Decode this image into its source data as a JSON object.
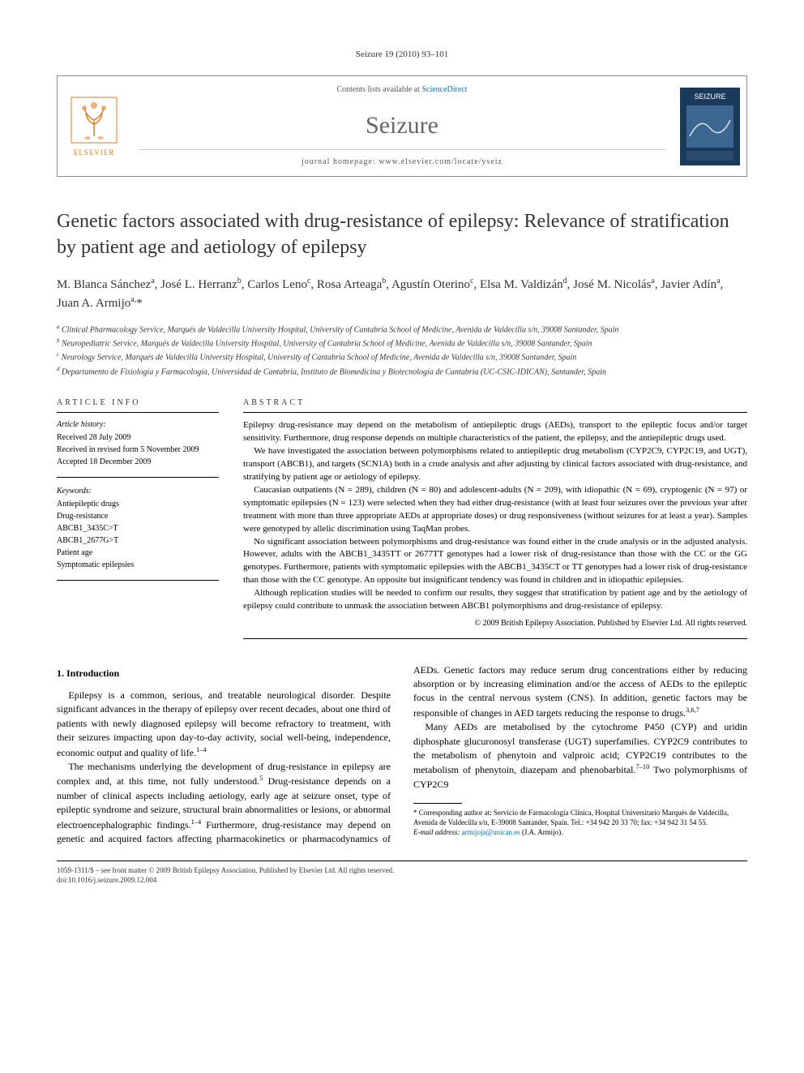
{
  "running_head": "Seizure 19 (2010) 93–101",
  "header": {
    "contents_prefix": "Contents lists available at ",
    "contents_link": "ScienceDirect",
    "journal_name": "Seizure",
    "homepage_prefix": "journal homepage: ",
    "homepage_url": "www.elsevier.com/locate/yseiz",
    "publisher_name": "ELSEVIER",
    "cover_title": "SEIZURE"
  },
  "title": "Genetic factors associated with drug-resistance of epilepsy: Relevance of stratification by patient age and aetiology of epilepsy",
  "authors_html": "M. Blanca Sánchez<sup>a</sup>, José L. Herranz<sup>b</sup>, Carlos Leno<sup>c</sup>, Rosa Arteaga<sup>b</sup>, Agustín Oterino<sup>c</sup>, Elsa M. Valdizán<sup>d</sup>, José M. Nicolás<sup>a</sup>, Javier Adín<sup>a</sup>, Juan A. Armijo<sup>a,</sup>*",
  "affiliations": [
    "a Clinical Pharmacology Service, Marqués de Valdecilla University Hospital, University of Cantabria School of Medicine, Avenida de Valdecilla s/n, 39008 Santander, Spain",
    "b Neuropediatric Service, Marqués de Valdecilla University Hospital, University of Cantabria School of Medicine, Avenida de Valdecilla s/n, 39008 Santander, Spain",
    "c Neurology Service, Marqués de Valdecilla University Hospital, University of Cantabria School of Medicine, Avenida de Valdecilla s/n, 39008 Santander, Spain",
    "d Departamento de Fisiología y Farmacología, Universidad de Cantabria, Instituto de Biomedicina y Biotecnología de Cantabria (UC-CSIC-IDICAN), Santander, Spain"
  ],
  "article_info": {
    "heading": "ARTICLE INFO",
    "history_label": "Article history:",
    "history": [
      "Received 28 July 2009",
      "Received in revised form 5 November 2009",
      "Accepted 18 December 2009"
    ],
    "keywords_label": "Keywords:",
    "keywords": [
      "Antiepileptic drugs",
      "Drug-resistance",
      "ABCB1_3435C>T",
      "ABCB1_2677G>T",
      "Patient age",
      "Symptomatic epilepsies"
    ]
  },
  "abstract": {
    "heading": "ABSTRACT",
    "paragraphs": [
      "Epilepsy drug-resistance may depend on the metabolism of antiepileptic drugs (AEDs), transport to the epileptic focus and/or target sensitivity. Furthermore, drug response depends on multiple characteristics of the patient, the epilepsy, and the antiepileptic drugs used.",
      "We have investigated the association between polymorphisms related to antiepileptic drug metabolism (CYP2C9, CYP2C19, and UGT), transport (ABCB1), and targets (SCN1A) both in a crude analysis and after adjusting by clinical factors associated with drug-resistance, and stratifying by patient age or aetiology of epilepsy.",
      "Caucasian outpatients (N = 289), children (N = 80) and adolescent-adults (N = 209), with idiopathic (N = 69), cryptogenic (N = 97) or symptomatic epilepsies (N = 123) were selected when they had either drug-resistance (with at least four seizures over the previous year after treatment with more than three appropriate AEDs at appropriate doses) or drug responsiveness (without seizures for at least a year). Samples were genotyped by allelic discrimination using TaqMan probes.",
      "No significant association between polymorphisms and drug-resistance was found either in the crude analysis or in the adjusted analysis. However, adults with the ABCB1_3435TT or 2677TT genotypes had a lower risk of drug-resistance than those with the CC or the GG genotypes. Furthermore, patients with symptomatic epilepsies with the ABCB1_3435CT or TT genotypes had a lower risk of drug-resistance than those with the CC genotype. An opposite but insignificant tendency was found in children and in idiopathic epilepsies.",
      "Although replication studies will be needed to confirm our results, they suggest that stratification by patient age and by the aetiology of epilepsy could contribute to unmask the association between ABCB1 polymorphisms and drug-resistance of epilepsy."
    ],
    "copyright": "© 2009 British Epilepsy Association. Published by Elsevier Ltd. All rights reserved."
  },
  "body": {
    "section_heading": "1. Introduction",
    "paragraphs": [
      "Epilepsy is a common, serious, and treatable neurological disorder. Despite significant advances in the therapy of epilepsy over recent decades, about one third of patients with newly diagnosed epilepsy will become refractory to treatment, with their seizures impacting upon day-to-day activity, social well-being, independence, economic output and quality of life.1–4",
      "The mechanisms underlying the development of drug-resistance in epilepsy are complex and, at this time, not fully understood.5 Drug-resistance depends on a number of clinical aspects including aetiology, early age at seizure onset, type of epileptic syndrome and seizure, structural brain abnormalities or lesions, or abnormal electroencephalographic findings.1–4 Furthermore, drug-resistance may depend on genetic and acquired factors affecting pharmacokinetics or pharmacodynamics of AEDs. Genetic factors may reduce serum drug concentrations either by reducing absorption or by increasing elimination and/or the access of AEDs to the epileptic focus in the central nervous system (CNS). In addition, genetic factors may be responsible of changes in AED targets reducing the response to drugs.3,6,7",
      "Many AEDs are metabolised by the cytochrome P450 (CYP) and uridin diphosphate glucuronosyl transferase (UGT) superfamilies. CYP2C9 contributes to the metabolism of phenytoin and valproic acid; CYP2C19 contributes to the metabolism of phenytoin, diazepam and phenobarbital.7–10 Two polymorphisms of CYP2C9"
    ]
  },
  "footnote": {
    "corresponding": "* Corresponding author at: Servicio de Farmacología Clínica, Hospital Universitario Marqués de Valdecilla, Avenida de Valdecilla s/n, E-39008 Santander, Spain. Tel.: +34 942 20 33 70; fax: +34 942 31 54 55.",
    "email_label": "E-mail address:",
    "email": "armijoja@unican.es",
    "email_name": "(J.A. Armijo)."
  },
  "bottom": {
    "issn_line": "1059-1311/$ – see front matter © 2009 British Epilepsy Association. Published by Elsevier Ltd. All rights reserved.",
    "doi_line": "doi:10.1016/j.seizure.2009.12.004"
  },
  "colors": {
    "link": "#1a6ba8",
    "elsevier_orange": "#e67e22",
    "journal_gray": "#666666",
    "cover_bg": "#1a3a5c",
    "cover_accent": "#4a7ba8"
  }
}
